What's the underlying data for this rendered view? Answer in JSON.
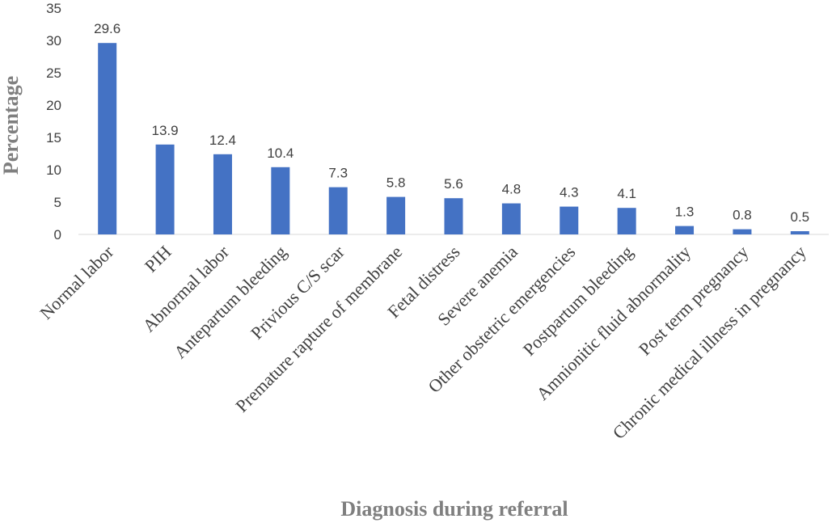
{
  "chart_data": {
    "type": "bar",
    "title": "",
    "xlabel": "Diagnosis during referral",
    "ylabel": "Percentage",
    "ylim": [
      0,
      35
    ],
    "yticks": [
      0,
      5,
      10,
      15,
      20,
      25,
      30,
      35
    ],
    "grid": false,
    "legend": "none",
    "bar_color": "#4472c4",
    "categories": [
      "Normal labor",
      "PIH",
      "Abnormal labor",
      "Antepartum bleeding",
      "Privious C/S scar",
      "Premature rapture of membrane",
      "Fetal distress",
      "Severe anemia",
      "Other obstetric emergencies",
      "Postpartum bleeding",
      "Amnionitic fluid abnormality",
      "Post term pregnancy",
      "Chronic medical illness in pregnancy"
    ],
    "values": [
      29.6,
      13.9,
      12.4,
      10.4,
      7.3,
      5.8,
      5.6,
      4.8,
      4.3,
      4.1,
      1.3,
      0.8,
      0.5
    ],
    "data_labels": [
      "29.6",
      "13.9",
      "12.4",
      "10.4",
      "7.3",
      "5.8",
      "5.6",
      "4.8",
      "4.3",
      "4.1",
      "1.3",
      "0.8",
      "0.5"
    ]
  }
}
